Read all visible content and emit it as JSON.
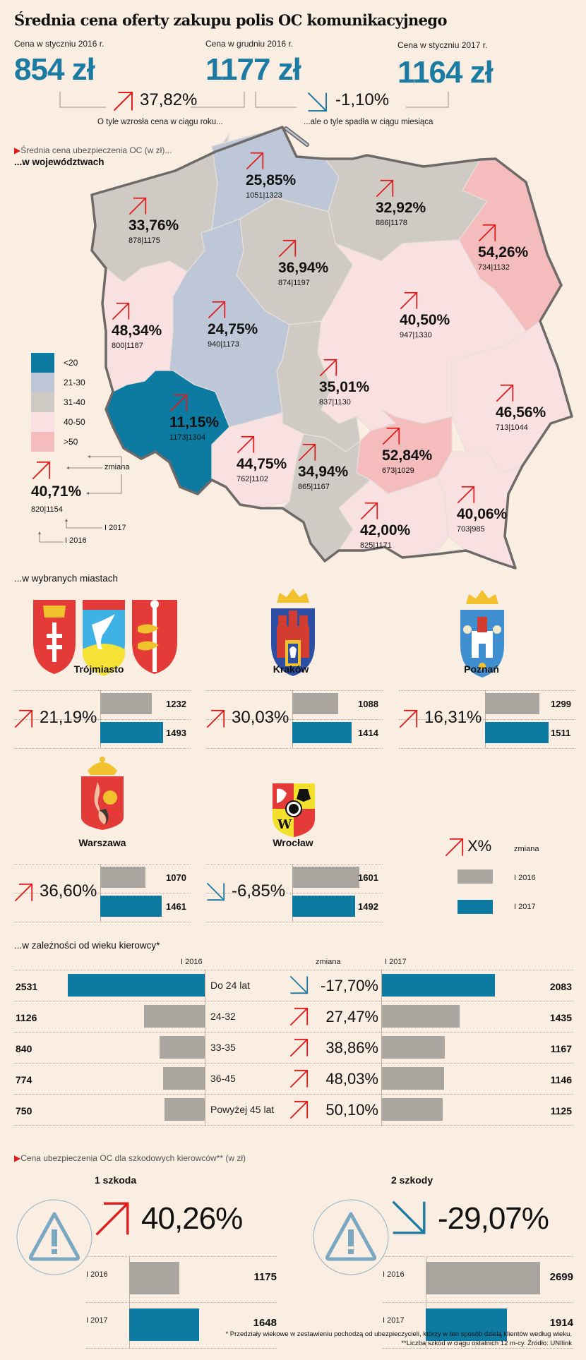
{
  "title": "Średnia cena oferty zakupu polis OC komunikacyjnego",
  "header": {
    "prices": [
      {
        "label": "Cena w styczniu 2016 r.",
        "value": "854 zł"
      },
      {
        "label": "Cena w grudniu 2016 r.",
        "value": "1177 zł"
      },
      {
        "label": "Cena w styczniu 2017 r.",
        "value": "1164 zł"
      }
    ],
    "changes": [
      {
        "direction": "up",
        "value": "37,82%",
        "caption": "O tyle wzrosła cena w ciągu roku..."
      },
      {
        "direction": "down",
        "value": "-1,10%",
        "caption": "...ale o tyle spadła w ciągu miesiąca"
      }
    ]
  },
  "map_section": {
    "subtitle": "Średnia cena ubezpieczenia OC (w zł)...",
    "heading": "...w województwach",
    "legend": [
      {
        "label": "<20",
        "color": "#0d7aa2"
      },
      {
        "label": "21-30",
        "color": "#bec7d7"
      },
      {
        "label": "31-40",
        "color": "#cfcac3"
      },
      {
        "label": "40-50",
        "color": "#fae1e1"
      },
      {
        "label": ">50",
        "color": "#f4bcbd"
      }
    ],
    "explainer": {
      "pct": "40,71%",
      "values": "820|1154",
      "change_label": "zmiana",
      "label_2016": "I 2016",
      "label_2017": "I 2017"
    },
    "regions": [
      {
        "id": "zachodniopomorskie",
        "pct": "33,76%",
        "values": "878|1175"
      },
      {
        "id": "pomorskie",
        "pct": "25,85%",
        "values": "1051|1323"
      },
      {
        "id": "warminsko-mazurskie",
        "pct": "32,92%",
        "values": "886|1178"
      },
      {
        "id": "podlaskie",
        "pct": "54,26%",
        "values": "734|1132"
      },
      {
        "id": "kujawsko-pomorskie",
        "pct": "36,94%",
        "values": "874|1197"
      },
      {
        "id": "lubuskie",
        "pct": "48,34%",
        "values": "800|1187"
      },
      {
        "id": "wielkopolskie",
        "pct": "24,75%",
        "values": "940|1173"
      },
      {
        "id": "mazowieckie",
        "pct": "40,50%",
        "values": "947|1330"
      },
      {
        "id": "lodzkie",
        "pct": "35,01%",
        "values": "837|1130"
      },
      {
        "id": "dolnoslaskie",
        "pct": "11,15%",
        "values": "1173|1304"
      },
      {
        "id": "lubelskie",
        "pct": "46,56%",
        "values": "713|1044"
      },
      {
        "id": "swietokrzyskie",
        "pct": "52,84%",
        "values": "673|1029"
      },
      {
        "id": "opolskie",
        "pct": "44,75%",
        "values": "762|1102"
      },
      {
        "id": "slaskie",
        "pct": "34,94%",
        "values": "865|1167"
      },
      {
        "id": "malopolskie",
        "pct": "42,00%",
        "values": "825|1171"
      },
      {
        "id": "podkarpackie",
        "pct": "40,06%",
        "values": "703|985"
      }
    ]
  },
  "cities_section": {
    "heading": "...w wybranych miastach",
    "cities": [
      {
        "name": "Trójmiasto",
        "direction": "up",
        "pct": "21,19%",
        "v2016": 1232,
        "v2017": 1493
      },
      {
        "name": "Kraków",
        "direction": "up",
        "pct": "30,03%",
        "v2016": 1088,
        "v2017": 1414
      },
      {
        "name": "Poznań",
        "direction": "up",
        "pct": "16,31%",
        "v2016": 1299,
        "v2017": 1511
      },
      {
        "name": "Warszawa",
        "direction": "up",
        "pct": "36,60%",
        "v2016": 1070,
        "v2017": 1461
      },
      {
        "name": "Wrocław",
        "direction": "down",
        "pct": "-6,85%",
        "v2016": 1601,
        "v2017": 1492
      }
    ],
    "legend": {
      "pct_label": "X%",
      "change": "zmiana",
      "l2016": "I 2016",
      "l2017": "I 2017"
    }
  },
  "age_section": {
    "heading": "...w zależności od wieku kierowcy*",
    "col_2016": "I 2016",
    "col_change": "zmiana",
    "col_2017": "I 2017",
    "rows": [
      {
        "label": "Do 24 lat",
        "v2016": 2531,
        "direction": "down",
        "pct": "-17,70%",
        "v2017": 2083
      },
      {
        "label": "24-32",
        "v2016": 1126,
        "direction": "up",
        "pct": "27,47%",
        "v2017": 1435
      },
      {
        "label": "33-35",
        "v2016": 840,
        "direction": "up",
        "pct": "38,86%",
        "v2017": 1167
      },
      {
        "label": "36-45",
        "v2016": 774,
        "direction": "up",
        "pct": "48,03%",
        "v2017": 1146
      },
      {
        "label": "Powyżej 45 lat",
        "v2016": 750,
        "direction": "up",
        "pct": "50,10%",
        "v2017": 1125
      }
    ]
  },
  "damage_section": {
    "subtitle": "Cena ubezpieczenia OC dla szkodowych kierowców** (w zł)",
    "groups": [
      {
        "title": "1 szkoda",
        "direction": "up",
        "pct": "40,26%",
        "l2016": "I 2016",
        "v2016": 1175,
        "l2017": "I 2017",
        "v2017": 1648
      },
      {
        "title": "2 szkody",
        "direction": "down",
        "pct": "-29,07%",
        "l2016": "I 2016",
        "v2016": 2699,
        "l2017": "I 2017",
        "v2017": 1914
      }
    ]
  },
  "footer": {
    "note1": "* Przedziały wiekowe w zestawieniu pochodzą od ubezpieczycieli, którzy w ten sposób dzielą klientów według wieku.",
    "note2": "**Liczba szkód w ciągu ostatnich 12 m-cy. Źródło: UNIlink"
  },
  "chart_data": [
    {
      "type": "bar",
      "title": "...w wybranych miastach",
      "categories": [
        "Trójmiasto",
        "Kraków",
        "Poznań",
        "Warszawa",
        "Wrocław"
      ],
      "series": [
        {
          "name": "I 2016",
          "values": [
            1232,
            1088,
            1299,
            1070,
            1601
          ]
        },
        {
          "name": "I 2017",
          "values": [
            1493,
            1414,
            1511,
            1461,
            1492
          ]
        }
      ],
      "changes": [
        "21,19%",
        "30,03%",
        "16,31%",
        "36,60%",
        "-6,85%"
      ]
    },
    {
      "type": "bar",
      "title": "...w zależności od wieku kierowcy*",
      "categories": [
        "Do 24 lat",
        "24-32",
        "33-35",
        "36-45",
        "Powyżej 45 lat"
      ],
      "series": [
        {
          "name": "I 2016",
          "values": [
            2531,
            1126,
            840,
            774,
            750
          ]
        },
        {
          "name": "I 2017",
          "values": [
            2083,
            1435,
            1167,
            1146,
            1125
          ]
        }
      ],
      "changes": [
        "-17,70%",
        "27,47%",
        "38,86%",
        "48,03%",
        "50,10%"
      ]
    },
    {
      "type": "bar",
      "title": "Cena ubezpieczenia OC dla szkodowych kierowców** (w zł)",
      "categories": [
        "1 szkoda",
        "2 szkody"
      ],
      "series": [
        {
          "name": "I 2016",
          "values": [
            1175,
            2699
          ]
        },
        {
          "name": "I 2017",
          "values": [
            1648,
            1914
          ]
        }
      ],
      "changes": [
        "40,26%",
        "-29,07%"
      ]
    }
  ]
}
